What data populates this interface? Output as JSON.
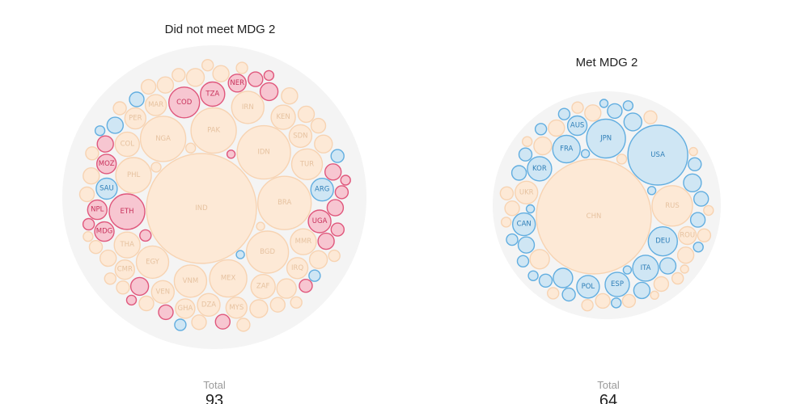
{
  "colors": {
    "background_disc": "#f4f4f4",
    "beige_fill": "#fde9d6",
    "beige_stroke": "#f7d3b2",
    "beige_text": "#e6c2a0",
    "red_fill": "#f7c6d1",
    "red_stroke": "#e0577c",
    "red_text": "#c8325c",
    "blue_fill": "#cfe6f4",
    "blue_stroke": "#62aee0",
    "blue_text": "#2f7fb8"
  },
  "chart_data": [
    {
      "type": "bubble-pack",
      "title": "Did not meet MDG 2",
      "total_label": "Total",
      "total_value": "93",
      "bubbles": [
        {
          "label": "IND",
          "cat": "beige",
          "size": 68
        },
        {
          "label": "IDN",
          "cat": "beige",
          "size": 33
        },
        {
          "label": "PAK",
          "cat": "beige",
          "size": 28
        },
        {
          "label": "NGA",
          "cat": "beige",
          "size": 28
        },
        {
          "label": "BRA",
          "cat": "beige",
          "size": 33
        },
        {
          "label": "MEX",
          "cat": "beige",
          "size": 23
        },
        {
          "label": "BGD",
          "cat": "beige",
          "size": 26
        },
        {
          "label": "PHL",
          "cat": "beige",
          "size": 22
        },
        {
          "label": "VNM",
          "cat": "beige",
          "size": 20
        },
        {
          "label": "EGY",
          "cat": "beige",
          "size": 20
        },
        {
          "label": "IRN",
          "cat": "beige",
          "size": 20
        },
        {
          "label": "TUR",
          "cat": "beige",
          "size": 19
        },
        {
          "label": "ETH",
          "cat": "red",
          "size": 22
        },
        {
          "label": "COD",
          "cat": "red",
          "size": 19
        },
        {
          "label": "ZAF",
          "cat": "beige",
          "size": 15
        },
        {
          "label": "TZA",
          "cat": "red",
          "size": 15
        },
        {
          "label": "COL",
          "cat": "beige",
          "size": 15
        },
        {
          "label": "MMR",
          "cat": "beige",
          "size": 16
        },
        {
          "label": "KEN",
          "cat": "beige",
          "size": 15
        },
        {
          "label": "SDN",
          "cat": "beige",
          "size": 14
        },
        {
          "label": "DZA",
          "cat": "beige",
          "size": 14
        },
        {
          "label": "THA",
          "cat": "beige",
          "size": 16
        },
        {
          "label": "UGA",
          "cat": "red",
          "size": 14
        },
        {
          "label": "ARG",
          "cat": "blue",
          "size": 14
        },
        {
          "label": "IRQ",
          "cat": "beige",
          "size": 13
        },
        {
          "label": "MAR",
          "cat": "beige",
          "size": 13
        },
        {
          "label": "SAU",
          "cat": "blue",
          "size": 13
        },
        {
          "label": "PER",
          "cat": "beige",
          "size": 13
        },
        {
          "label": "MOZ",
          "cat": "red",
          "size": 12
        },
        {
          "label": "GHA",
          "cat": "beige",
          "size": 12
        },
        {
          "label": "MDG",
          "cat": "red",
          "size": 12
        },
        {
          "label": "CMR",
          "cat": "beige",
          "size": 12
        },
        {
          "label": "NER",
          "cat": "red",
          "size": 11
        },
        {
          "label": "VEN",
          "cat": "beige",
          "size": 14
        },
        {
          "label": "MYS",
          "cat": "beige",
          "size": 13
        },
        {
          "label": "NPL",
          "cat": "red",
          "size": 12
        },
        {
          "label": "",
          "cat": "red",
          "size": 11
        },
        {
          "label": "",
          "cat": "red",
          "size": 11
        },
        {
          "label": "",
          "cat": "red",
          "size": 10
        },
        {
          "label": "",
          "cat": "red",
          "size": 10
        },
        {
          "label": "",
          "cat": "red",
          "size": 10
        },
        {
          "label": "",
          "cat": "red",
          "size": 10
        },
        {
          "label": "",
          "cat": "red",
          "size": 9
        },
        {
          "label": "",
          "cat": "red",
          "size": 9
        },
        {
          "label": "",
          "cat": "red",
          "size": 9
        },
        {
          "label": "",
          "cat": "red",
          "size": 8
        },
        {
          "label": "",
          "cat": "red",
          "size": 8
        },
        {
          "label": "",
          "cat": "red",
          "size": 8
        },
        {
          "label": "",
          "cat": "red",
          "size": 7
        },
        {
          "label": "",
          "cat": "red",
          "size": 7
        },
        {
          "label": "",
          "cat": "red",
          "size": 6
        },
        {
          "label": "",
          "cat": "red",
          "size": 6
        },
        {
          "label": "",
          "cat": "red",
          "size": 6
        },
        {
          "label": "",
          "cat": "red",
          "size": 5
        },
        {
          "label": "",
          "cat": "blue",
          "size": 10
        },
        {
          "label": "",
          "cat": "blue",
          "size": 9
        },
        {
          "label": "",
          "cat": "blue",
          "size": 8
        },
        {
          "label": "",
          "cat": "blue",
          "size": 7
        },
        {
          "label": "",
          "cat": "blue",
          "size": 7
        },
        {
          "label": "",
          "cat": "blue",
          "size": 6
        },
        {
          "label": "",
          "cat": "blue",
          "size": 5
        },
        {
          "label": "",
          "cat": "beige",
          "size": 12
        },
        {
          "label": "",
          "cat": "beige",
          "size": 11
        },
        {
          "label": "",
          "cat": "beige",
          "size": 11
        },
        {
          "label": "",
          "cat": "beige",
          "size": 11
        },
        {
          "label": "",
          "cat": "beige",
          "size": 11
        },
        {
          "label": "",
          "cat": "beige",
          "size": 10
        },
        {
          "label": "",
          "cat": "beige",
          "size": 10
        },
        {
          "label": "",
          "cat": "beige",
          "size": 10
        },
        {
          "label": "",
          "cat": "beige",
          "size": 10
        },
        {
          "label": "",
          "cat": "beige",
          "size": 10
        },
        {
          "label": "",
          "cat": "beige",
          "size": 10
        },
        {
          "label": "",
          "cat": "beige",
          "size": 9
        },
        {
          "label": "",
          "cat": "beige",
          "size": 9
        },
        {
          "label": "",
          "cat": "beige",
          "size": 9
        },
        {
          "label": "",
          "cat": "beige",
          "size": 9
        },
        {
          "label": "",
          "cat": "beige",
          "size": 9
        },
        {
          "label": "",
          "cat": "beige",
          "size": 9
        },
        {
          "label": "",
          "cat": "beige",
          "size": 8
        },
        {
          "label": "",
          "cat": "beige",
          "size": 8
        },
        {
          "label": "",
          "cat": "beige",
          "size": 8
        },
        {
          "label": "",
          "cat": "beige",
          "size": 8
        },
        {
          "label": "",
          "cat": "beige",
          "size": 8
        },
        {
          "label": "",
          "cat": "beige",
          "size": 8
        },
        {
          "label": "",
          "cat": "beige",
          "size": 7
        },
        {
          "label": "",
          "cat": "beige",
          "size": 7
        },
        {
          "label": "",
          "cat": "beige",
          "size": 7
        },
        {
          "label": "",
          "cat": "beige",
          "size": 7
        },
        {
          "label": "",
          "cat": "beige",
          "size": 7
        },
        {
          "label": "",
          "cat": "beige",
          "size": 6
        },
        {
          "label": "",
          "cat": "beige",
          "size": 6
        },
        {
          "label": "",
          "cat": "beige",
          "size": 6
        },
        {
          "label": "",
          "cat": "beige",
          "size": 5
        }
      ]
    },
    {
      "type": "bubble-pack",
      "title": "Met MDG 2",
      "total_label": "Total",
      "total_value": "64",
      "bubbles": [
        {
          "label": "CHN",
          "cat": "beige",
          "size": 71
        },
        {
          "label": "USA",
          "cat": "blue",
          "size": 37
        },
        {
          "label": "JPN",
          "cat": "blue",
          "size": 24
        },
        {
          "label": "RUS",
          "cat": "beige",
          "size": 25
        },
        {
          "label": "DEU",
          "cat": "blue",
          "size": 18
        },
        {
          "label": "FRA",
          "cat": "blue",
          "size": 17
        },
        {
          "label": "ITA",
          "cat": "blue",
          "size": 16
        },
        {
          "label": "KOR",
          "cat": "blue",
          "size": 15
        },
        {
          "label": "UKR",
          "cat": "beige",
          "size": 14
        },
        {
          "label": "ESP",
          "cat": "blue",
          "size": 15
        },
        {
          "label": "POL",
          "cat": "blue",
          "size": 14
        },
        {
          "label": "CAN",
          "cat": "blue",
          "size": 14
        },
        {
          "label": "AUS",
          "cat": "blue",
          "size": 12
        },
        {
          "label": "ROU",
          "cat": "beige",
          "size": 11
        },
        {
          "label": "",
          "cat": "blue",
          "size": 12
        },
        {
          "label": "",
          "cat": "blue",
          "size": 11
        },
        {
          "label": "",
          "cat": "blue",
          "size": 11
        },
        {
          "label": "",
          "cat": "blue",
          "size": 10
        },
        {
          "label": "",
          "cat": "blue",
          "size": 10
        },
        {
          "label": "",
          "cat": "blue",
          "size": 10
        },
        {
          "label": "",
          "cat": "blue",
          "size": 9
        },
        {
          "label": "",
          "cat": "blue",
          "size": 9
        },
        {
          "label": "",
          "cat": "blue",
          "size": 9
        },
        {
          "label": "",
          "cat": "blue",
          "size": 9
        },
        {
          "label": "",
          "cat": "blue",
          "size": 8
        },
        {
          "label": "",
          "cat": "blue",
          "size": 8
        },
        {
          "label": "",
          "cat": "blue",
          "size": 8
        },
        {
          "label": "",
          "cat": "blue",
          "size": 8
        },
        {
          "label": "",
          "cat": "blue",
          "size": 7
        },
        {
          "label": "",
          "cat": "blue",
          "size": 7
        },
        {
          "label": "",
          "cat": "blue",
          "size": 7
        },
        {
          "label": "",
          "cat": "blue",
          "size": 7
        },
        {
          "label": "",
          "cat": "blue",
          "size": 6
        },
        {
          "label": "",
          "cat": "blue",
          "size": 6
        },
        {
          "label": "",
          "cat": "blue",
          "size": 6
        },
        {
          "label": "",
          "cat": "blue",
          "size": 6
        },
        {
          "label": "",
          "cat": "blue",
          "size": 5
        },
        {
          "label": "",
          "cat": "blue",
          "size": 5
        },
        {
          "label": "",
          "cat": "blue",
          "size": 5
        },
        {
          "label": "",
          "cat": "blue",
          "size": 5
        },
        {
          "label": "",
          "cat": "blue",
          "size": 5
        },
        {
          "label": "",
          "cat": "beige",
          "size": 12
        },
        {
          "label": "",
          "cat": "beige",
          "size": 11
        },
        {
          "label": "",
          "cat": "beige",
          "size": 10
        },
        {
          "label": "",
          "cat": "beige",
          "size": 10
        },
        {
          "label": "",
          "cat": "beige",
          "size": 10
        },
        {
          "label": "",
          "cat": "beige",
          "size": 9
        },
        {
          "label": "",
          "cat": "beige",
          "size": 9
        },
        {
          "label": "",
          "cat": "beige",
          "size": 9
        },
        {
          "label": "",
          "cat": "beige",
          "size": 8
        },
        {
          "label": "",
          "cat": "beige",
          "size": 8
        },
        {
          "label": "",
          "cat": "beige",
          "size": 8
        },
        {
          "label": "",
          "cat": "beige",
          "size": 8
        },
        {
          "label": "",
          "cat": "beige",
          "size": 7
        },
        {
          "label": "",
          "cat": "beige",
          "size": 7
        },
        {
          "label": "",
          "cat": "beige",
          "size": 7
        },
        {
          "label": "",
          "cat": "beige",
          "size": 7
        },
        {
          "label": "",
          "cat": "beige",
          "size": 6
        },
        {
          "label": "",
          "cat": "beige",
          "size": 6
        },
        {
          "label": "",
          "cat": "beige",
          "size": 6
        },
        {
          "label": "",
          "cat": "beige",
          "size": 6
        },
        {
          "label": "",
          "cat": "beige",
          "size": 5
        },
        {
          "label": "",
          "cat": "beige",
          "size": 5
        },
        {
          "label": "",
          "cat": "beige",
          "size": 5
        }
      ]
    }
  ]
}
